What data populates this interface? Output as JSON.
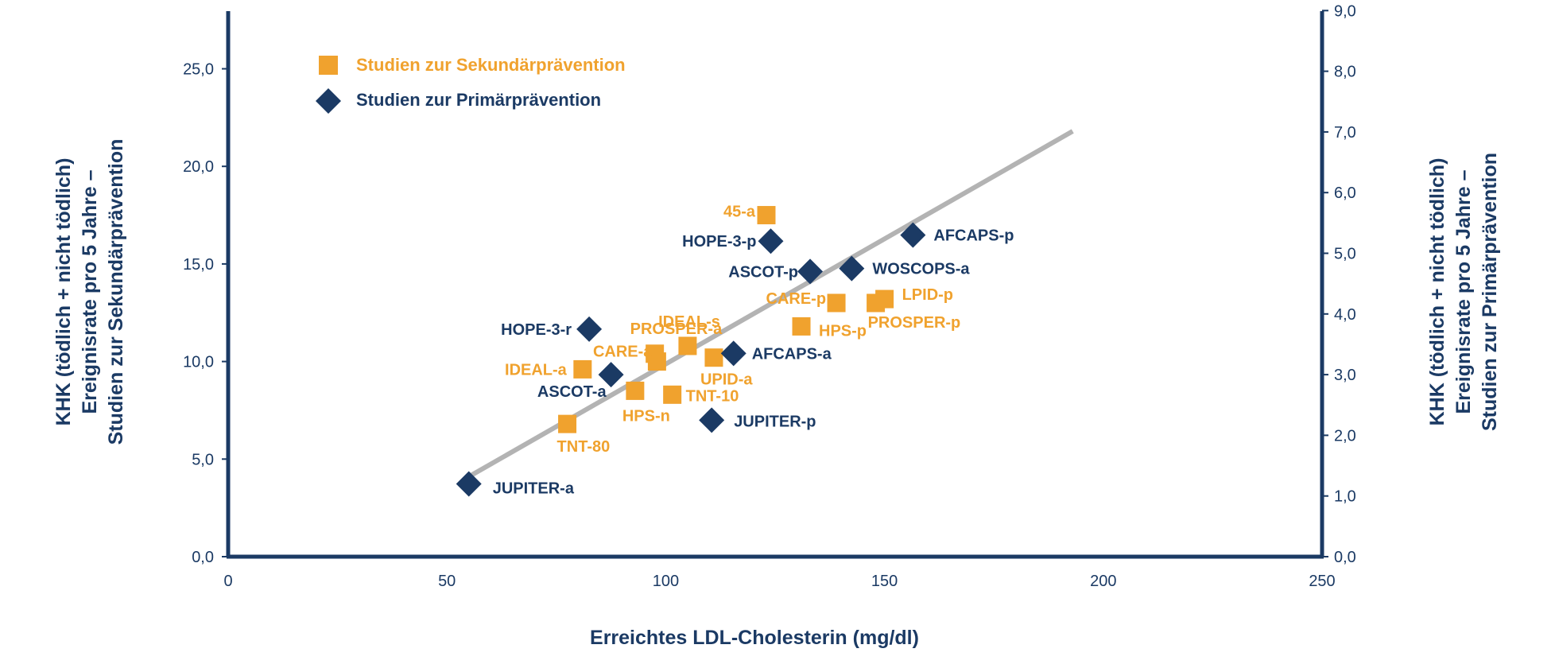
{
  "chart_data": {
    "type": "scatter",
    "xlabel": "Erreichtes LDL-Cholesterin (mg/dl)",
    "ylabel_left": [
      "KHK (tödlich + nicht tödlich)",
      "Ereignisrate pro 5 Jahre –",
      "Studien zur Sekundärprävention"
    ],
    "ylabel_right": [
      "KHK (tödlich + nicht tödlich)",
      "Ereignisrate pro 5 Jahre –",
      "Studien zur Primärprävention"
    ],
    "xlim": [
      0,
      250
    ],
    "ylim_left": [
      0,
      28
    ],
    "ylim_right": [
      0,
      9
    ],
    "x_ticks": [
      "0",
      "50",
      "100",
      "150",
      "200",
      "250"
    ],
    "y_left_ticks": [
      "0,0",
      "5,0",
      "10,0",
      "15,0",
      "20,0",
      "25,0"
    ],
    "y_right_ticks": [
      "0,0",
      "1,0",
      "2,0",
      "3,0",
      "4,0",
      "5,0",
      "6,0",
      "7,0",
      "8,0",
      "9,0"
    ],
    "colors": {
      "secondary": "#f0a22e",
      "primary": "#1b3a64",
      "trend": "#b3b3b3"
    },
    "legend": {
      "position": "top-left"
    },
    "series": [
      {
        "name": "Studien zur Sekundärprävention",
        "marker": "square",
        "axis": "left",
        "points": [
          {
            "label": "45-a",
            "x": 123,
            "y": 17.5
          },
          {
            "label": "CARE-p",
            "x": 139,
            "y": 13.0
          },
          {
            "label": "LPID-p",
            "x": 150,
            "y": 13.2
          },
          {
            "label": "PROSPER-p",
            "x": 148,
            "y": 13.0
          },
          {
            "label": "HPS-p",
            "x": 131,
            "y": 11.8
          },
          {
            "label": "IDEAL-s",
            "x": 105,
            "y": 10.8
          },
          {
            "label": "PROSPER-a",
            "x": 97.5,
            "y": 10.4
          },
          {
            "label": "CARE-a",
            "x": 98,
            "y": 10.0
          },
          {
            "label": "UPID-a",
            "x": 111,
            "y": 10.2
          },
          {
            "label": "IDEAL-a",
            "x": 81,
            "y": 9.6
          },
          {
            "label": "HPS-n",
            "x": 93,
            "y": 8.5
          },
          {
            "label": "TNT-10",
            "x": 101.5,
            "y": 8.3
          },
          {
            "label": "TNT-80",
            "x": 77.5,
            "y": 6.8
          }
        ]
      },
      {
        "name": "Studien zur Primärprävention",
        "marker": "diamond",
        "axis": "right",
        "points": [
          {
            "label": "AFCAPS-p",
            "x": 156.5,
            "y": 5.3
          },
          {
            "label": "HOPE-3-p",
            "x": 124,
            "y": 5.2
          },
          {
            "label": "ASCOT-p",
            "x": 133,
            "y": 4.7
          },
          {
            "label": "WOSCOPS-a",
            "x": 142.5,
            "y": 4.75
          },
          {
            "label": "HOPE-3-r",
            "x": 82.5,
            "y": 3.75
          },
          {
            "label": "AFCAPS-a",
            "x": 115.5,
            "y": 3.35
          },
          {
            "label": "ASCOT-a",
            "x": 87.5,
            "y": 3.0
          },
          {
            "label": "JUPITER-p",
            "x": 110.5,
            "y": 2.25
          },
          {
            "label": "JUPITER-a",
            "x": 55,
            "y": 1.2
          }
        ]
      }
    ],
    "trendline": {
      "axis": "left",
      "from": {
        "x": 55,
        "y": 4.1
      },
      "to": {
        "x": 193,
        "y": 21.8
      }
    }
  }
}
